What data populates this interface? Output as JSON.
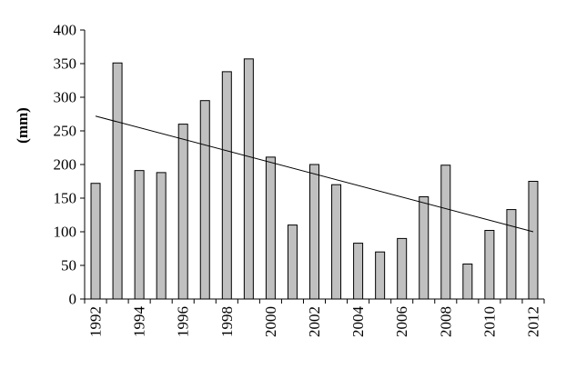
{
  "chart_data": {
    "type": "bar",
    "title": "",
    "xlabel": "",
    "ylabel": "(mm)",
    "ylim": [
      0,
      400
    ],
    "yticks": [
      0,
      50,
      100,
      150,
      200,
      250,
      300,
      350,
      400
    ],
    "grid": false,
    "legend": "none",
    "categories": [
      "1992",
      "1993",
      "1994",
      "1995",
      "1996",
      "1997",
      "1998",
      "1999",
      "2000",
      "2001",
      "2002",
      "2003",
      "2004",
      "2005",
      "2006",
      "2007",
      "2008",
      "2009",
      "2010",
      "2011",
      "2012"
    ],
    "xtick_labels": [
      "1992",
      "",
      "1994",
      "",
      "1996",
      "",
      "1998",
      "",
      "2000",
      "",
      "2002",
      "",
      "2004",
      "",
      "2006",
      "",
      "2008",
      "",
      "2010",
      "",
      "2012"
    ],
    "series": [
      {
        "values": [
          172,
          351,
          191,
          188,
          260,
          295,
          338,
          357,
          211,
          110,
          200,
          170,
          83,
          70,
          90,
          152,
          199,
          52,
          102,
          133,
          175
        ]
      }
    ],
    "trendline": {
      "type": "linear",
      "start": 272,
      "end": 100
    },
    "colors": {
      "bar_fill": "#c0c0c0",
      "bar_stroke": "#000000",
      "axis": "#000000",
      "trend": "#000000"
    }
  }
}
